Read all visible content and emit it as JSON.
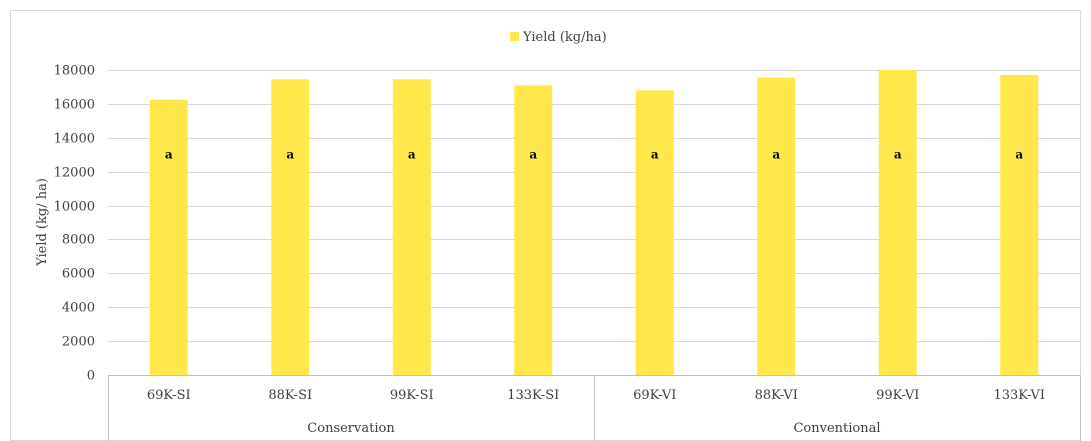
{
  "chart_data": {
    "type": "bar",
    "title": "",
    "xlabel": "",
    "ylabel": "Yield (kg/ ha)",
    "ylim": [
      0,
      18000
    ],
    "yticks": [
      0,
      2000,
      4000,
      6000,
      8000,
      10000,
      12000,
      14000,
      16000,
      18000
    ],
    "grid": true,
    "legend_position": "top-center",
    "categories": [
      "69K-SI",
      "88K-SI",
      "99K-SI",
      "133K-SI",
      "69K-VI",
      "88K-VI",
      "99K-VI",
      "133K-VI"
    ],
    "groups": [
      {
        "label": "Conservation",
        "count": 4
      },
      {
        "label": "Conventional",
        "count": 4
      }
    ],
    "series": [
      {
        "name": "Yield (kg/ha)",
        "color": "#FFE74C",
        "values": [
          16250,
          17450,
          17450,
          17100,
          16800,
          17550,
          18000,
          17700
        ],
        "labels": [
          "a",
          "a",
          "a",
          "a",
          "a",
          "a",
          "a",
          "a"
        ]
      }
    ]
  }
}
